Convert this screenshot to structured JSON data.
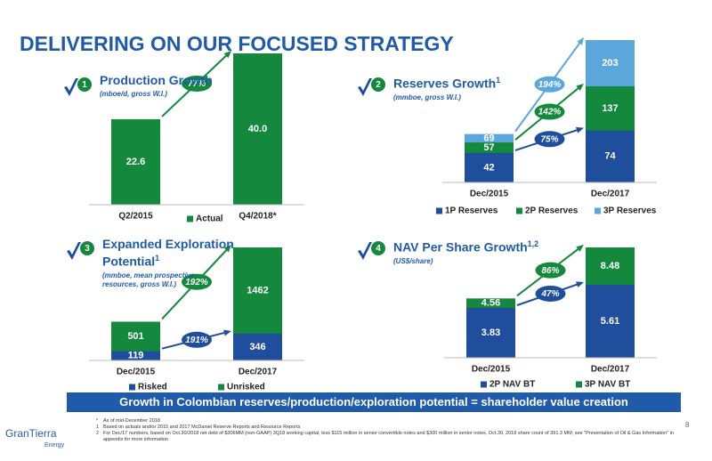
{
  "title": "DELIVERING ON OUR FOCUSED STRATEGY",
  "chart_data": [
    {
      "type": "bar",
      "number": "1",
      "title": "Production Growth",
      "subtitle": "(mboe/d, gross W.I.)",
      "categories": [
        "Q2/2015",
        "Q4/2018*"
      ],
      "series": [
        {
          "name": "Actual",
          "color": "#14883c",
          "values": [
            22.6,
            40.0
          ],
          "value_labels": [
            "22.6",
            "40.0"
          ],
          "growth": "77%"
        }
      ]
    },
    {
      "type": "bar",
      "number": "2",
      "title": "Reserves Growth",
      "title_sup": "1",
      "subtitle": "(mmboe, gross W.I.)",
      "categories": [
        "Dec/2015",
        "Dec/2017"
      ],
      "series": [
        {
          "name": "1P Reserves",
          "color": "#1f4e9c",
          "values": [
            42,
            74
          ],
          "growth": "75%"
        },
        {
          "name": "2P Reserves",
          "color": "#14883c",
          "values": [
            57,
            137
          ],
          "growth": "142%"
        },
        {
          "name": "3P Reserves",
          "color": "#5ba7dc",
          "values": [
            69,
            203
          ],
          "growth": "194%"
        }
      ]
    },
    {
      "type": "bar",
      "number": "3",
      "title": "Expanded Exploration Potential",
      "title_sup": "1",
      "subtitle": "(mmboe, mean prospective resources, gross W.I.)",
      "categories": [
        "Dec/2015",
        "Dec/2017"
      ],
      "series": [
        {
          "name": "Risked",
          "color": "#1f4e9c",
          "values": [
            119,
            346
          ],
          "growth": "191%"
        },
        {
          "name": "Unrisked",
          "color": "#14883c",
          "values": [
            501,
            1462
          ],
          "growth": "192%"
        }
      ]
    },
    {
      "type": "bar",
      "number": "4",
      "title": "NAV Per Share Growth",
      "title_sup": "1,2",
      "subtitle": "(US$/share)",
      "categories": [
        "Dec/2015",
        "Dec/2017"
      ],
      "series": [
        {
          "name": "2P NAV BT",
          "color": "#1f4e9c",
          "values": [
            3.83,
            5.61
          ],
          "growth": "47%"
        },
        {
          "name": "3P NAV BT",
          "color": "#14883c",
          "values": [
            4.56,
            8.48
          ],
          "growth": "86%"
        }
      ]
    }
  ],
  "banner": "Growth in Colombian reserves/production/exploration potential = shareholder value creation",
  "footnotes": [
    {
      "mark": "*",
      "text": "As of mid-December 2018"
    },
    {
      "mark": "1",
      "text": "Based on actuals and/or 2015 and 2017 McDaniel Reserve Reports and Resource Reports"
    },
    {
      "mark": "2",
      "text": "For Dec/17 numbers, based on Oct.30/2018 net debt of $306MM (non-GAAP) 3Q18 working capital, less $115 million in senior convertible notes and $300 million in senior notes, Oct.30, 2018 share count of 391.3 MM; see \"Presentation of Oil & Gas Information\" in appendix for more information"
    }
  ],
  "logo": {
    "name": "GranTierra",
    "tagline": "Energy"
  },
  "page_number": "8"
}
